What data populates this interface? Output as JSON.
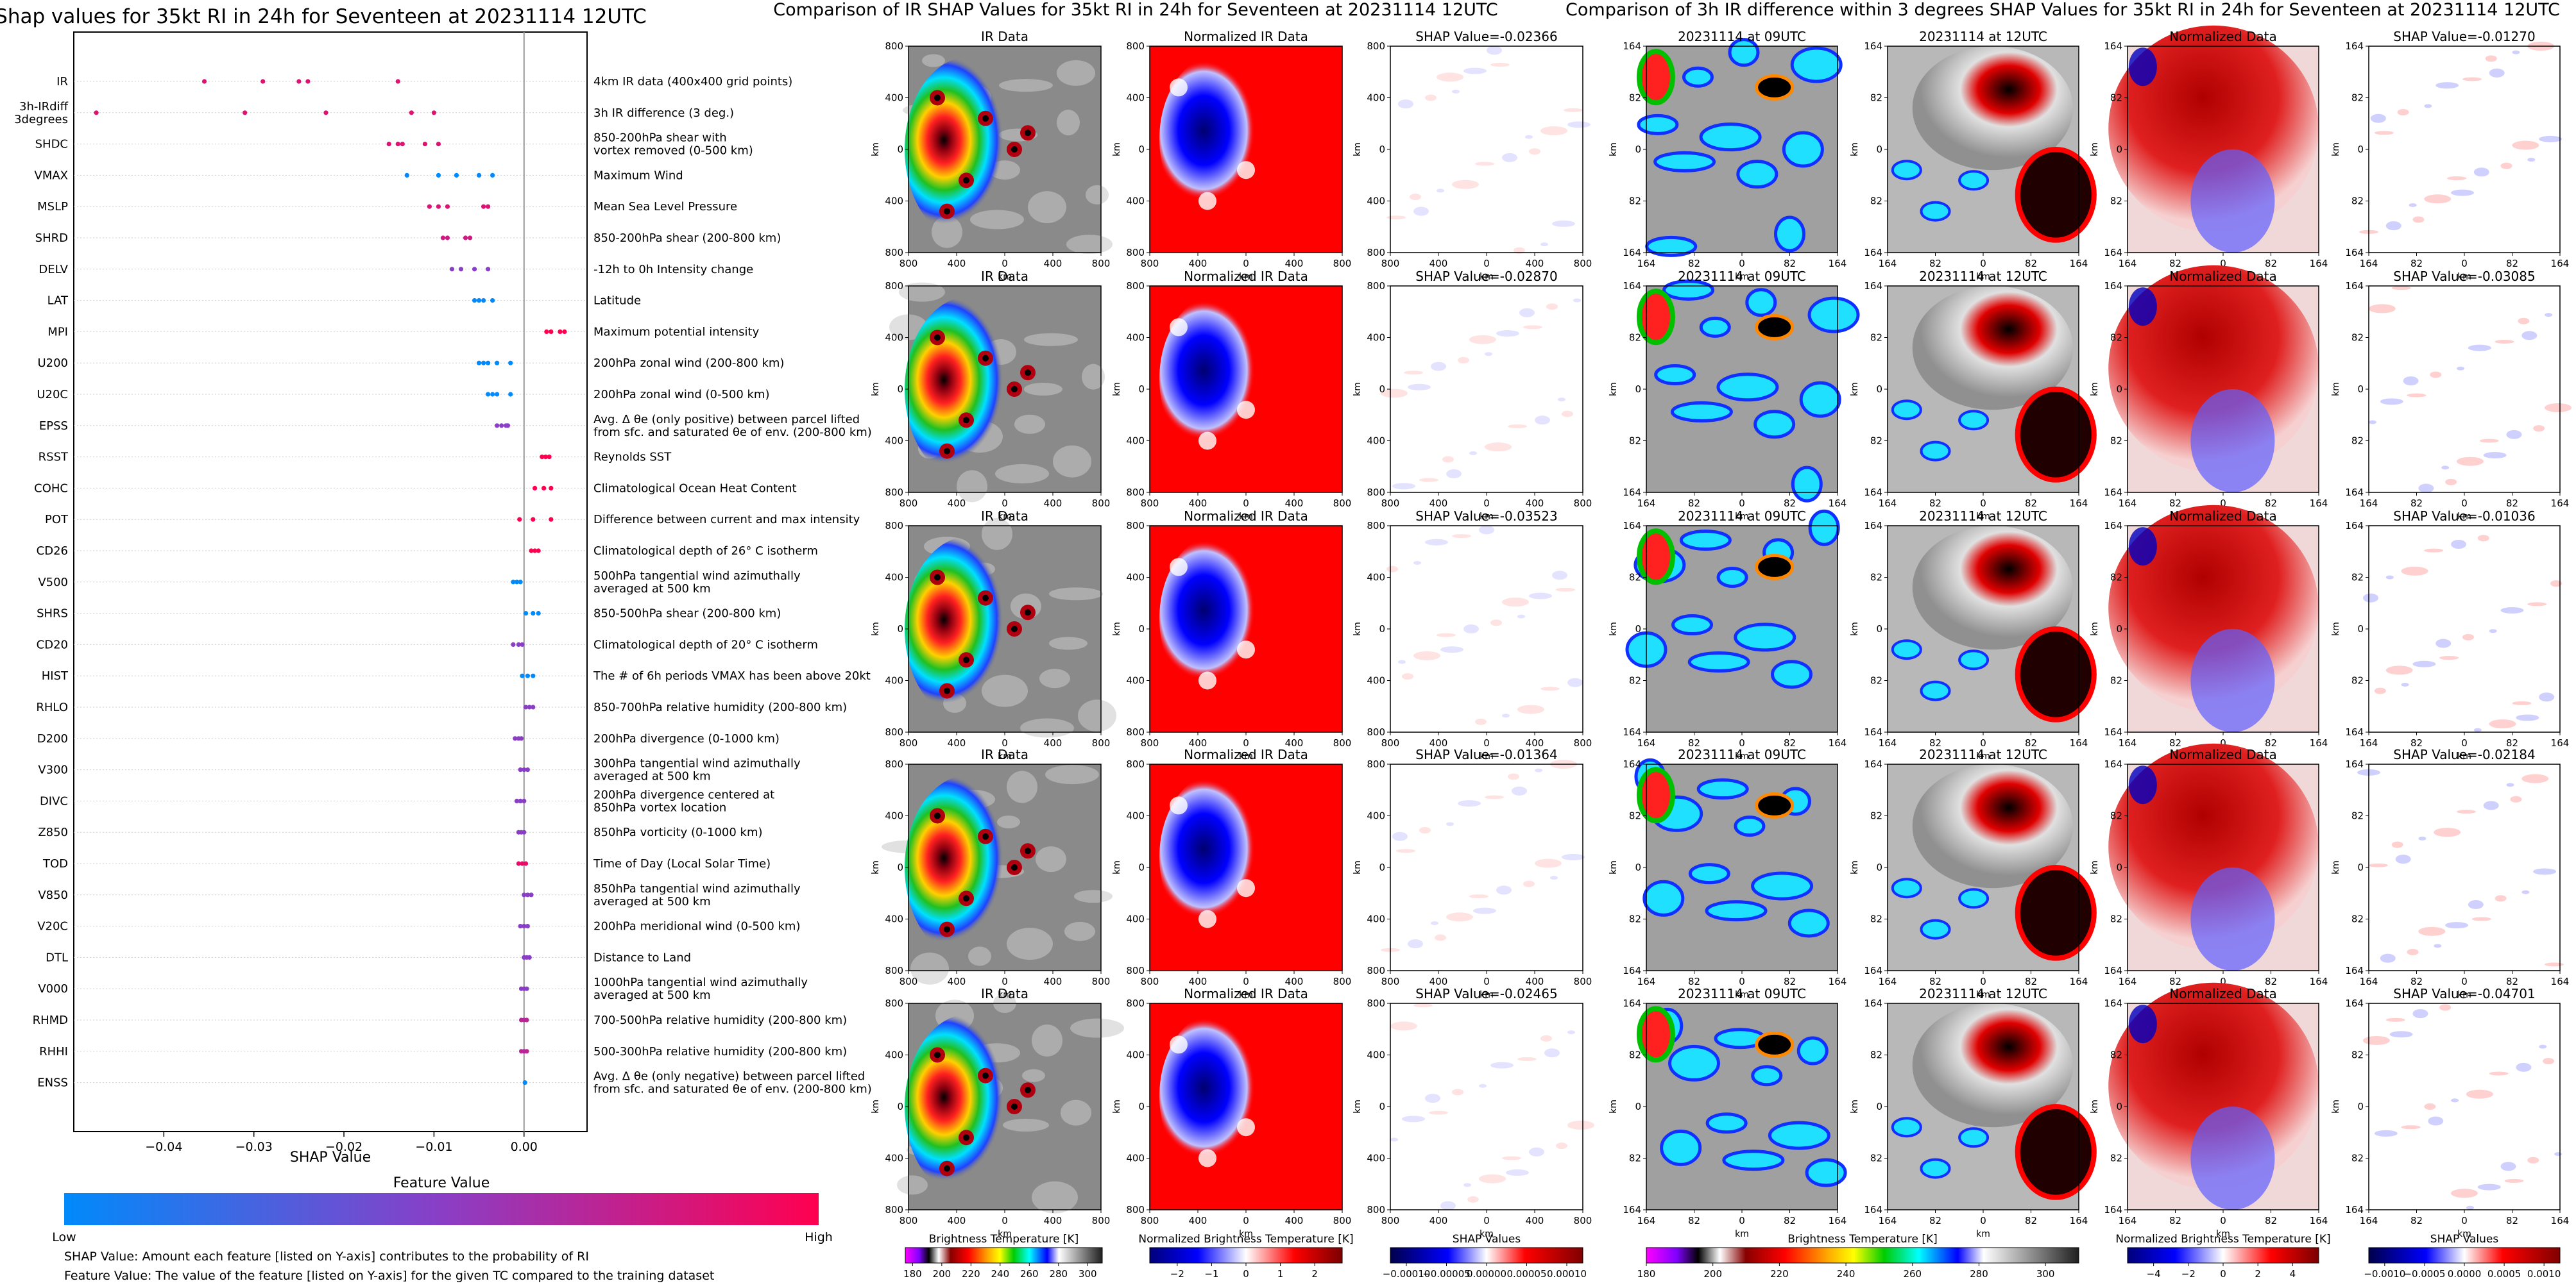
{
  "colors": {
    "feature_low": "#008afb",
    "feature_mid": "#8a3ec6",
    "feature_high": "#ff0050",
    "ir_cold": "#9a002a",
    "ir_warm_gray": "#808080",
    "norm_blue": "#0000ff",
    "norm_red": "#ff0000"
  },
  "chart_data": [
    {
      "type": "scatter",
      "title": "Shap values for 35kt RI in 24h for Seventeen at 20231114 12UTC",
      "xlabel": "SHAP Value",
      "ylabel": "",
      "xlim": [
        -0.05,
        0.007
      ],
      "x_ticks": [
        "−0.04",
        "−0.03",
        "−0.02",
        "−0.01",
        "0.00"
      ],
      "x_tick_values": [
        -0.04,
        -0.03,
        -0.02,
        -0.01,
        0.0
      ],
      "grid": false,
      "legend": "none",
      "colorbar": {
        "title": "Feature Value",
        "low": "Low",
        "high": "High"
      },
      "notes": [
        "SHAP Value: Amount each feature [listed on Y-axis] contributes to the probability of RI",
        "Feature Value: The value of the feature [listed on Y-axis] for the given TC compared to the training dataset"
      ],
      "features": [
        {
          "code": "IR",
          "desc": "4km IR data (400x400 grid points)",
          "values": [
            -0.0355,
            -0.029,
            -0.025,
            -0.024,
            -0.014
          ],
          "level": 0.85
        },
        {
          "code": "3h-IRdiff\n3degrees",
          "desc": "3h IR difference (3 deg.)",
          "values": [
            -0.0475,
            -0.031,
            -0.022,
            -0.0125,
            -0.01
          ],
          "level": 0.85
        },
        {
          "code": "SHDC",
          "desc": "850-200hPa shear with\nvortex removed (0-500 km)",
          "values": [
            -0.015,
            -0.014,
            -0.0135,
            -0.011,
            -0.0095
          ],
          "level": 0.85
        },
        {
          "code": "VMAX",
          "desc": "Maximum Wind",
          "values": [
            -0.013,
            -0.0095,
            -0.0075,
            -0.005,
            -0.0035
          ],
          "level": 0.0
        },
        {
          "code": "MSLP",
          "desc": "Mean Sea Level Pressure",
          "values": [
            -0.0105,
            -0.0095,
            -0.0085,
            -0.0045,
            -0.004
          ],
          "level": 0.85
        },
        {
          "code": "SHRD",
          "desc": "850-200hPa shear (200-800 km)",
          "values": [
            -0.009,
            -0.0085,
            -0.0065,
            -0.006
          ],
          "level": 0.8
        },
        {
          "code": "DELV",
          "desc": "-12h to 0h Intensity change",
          "values": [
            -0.008,
            -0.007,
            -0.0055,
            -0.004
          ],
          "level": 0.5
        },
        {
          "code": "LAT",
          "desc": "Latitude",
          "values": [
            -0.0055,
            -0.005,
            -0.0045,
            -0.0035
          ],
          "level": 0.0
        },
        {
          "code": "MPI",
          "desc": "Maximum potential intensity",
          "values": [
            0.0025,
            0.003,
            0.004,
            0.0045
          ],
          "level": 1.0
        },
        {
          "code": "U200",
          "desc": "200hPa zonal wind (200-800 km)",
          "values": [
            -0.005,
            -0.0045,
            -0.004,
            -0.003,
            -0.0015
          ],
          "level": 0.0
        },
        {
          "code": "U20C",
          "desc": "200hPa zonal wind (0-500 km)",
          "values": [
            -0.004,
            -0.0035,
            -0.003,
            -0.0015
          ],
          "level": 0.0
        },
        {
          "code": "EPSS",
          "desc": "Avg. Δ θe (only positive) between parcel lifted\nfrom sfc. and saturated θe of env. (200-800 km)",
          "values": [
            -0.003,
            -0.0025,
            -0.002,
            -0.0018
          ],
          "level": 0.5
        },
        {
          "code": "RSST",
          "desc": "Reynolds SST",
          "values": [
            0.002,
            0.0024,
            0.0028
          ],
          "level": 1.0
        },
        {
          "code": "COHC",
          "desc": "Climatological Ocean Heat Content",
          "values": [
            0.0012,
            0.0022,
            0.003
          ],
          "level": 1.0
        },
        {
          "code": "POT",
          "desc": "Difference between current and max intensity",
          "values": [
            -0.0005,
            0.001,
            0.003
          ],
          "level": 1.0
        },
        {
          "code": "CD26",
          "desc": "Climatological depth of 26° C isotherm",
          "values": [
            0.0008,
            0.0012,
            0.0016
          ],
          "level": 1.0
        },
        {
          "code": "V500",
          "desc": "500hPa tangential wind azimuthally\naveraged at 500 km",
          "values": [
            -0.0012,
            -0.0008,
            -0.0004
          ],
          "level": 0.0
        },
        {
          "code": "SHRS",
          "desc": "850-500hPa shear (200-800 km)",
          "values": [
            0.0002,
            0.001,
            0.0016
          ],
          "level": 0.0
        },
        {
          "code": "CD20",
          "desc": "Climatological depth of 20° C isotherm",
          "values": [
            -0.0012,
            -0.0006,
            -0.0002
          ],
          "level": 0.5
        },
        {
          "code": "HIST",
          "desc": "The # of 6h periods VMAX has been above 20kt",
          "values": [
            -0.0002,
            0.0004,
            0.001
          ],
          "level": 0.0
        },
        {
          "code": "RHLO",
          "desc": "850-700hPa relative humidity (200-800 km)",
          "values": [
            0.0002,
            0.0006,
            0.001
          ],
          "level": 0.5
        },
        {
          "code": "D200",
          "desc": "200hPa divergence (0-1000 km)",
          "values": [
            -0.001,
            -0.0006,
            -0.0003
          ],
          "level": 0.5
        },
        {
          "code": "V300",
          "desc": "300hPa tangential wind azimuthally\naveraged at 500 km",
          "values": [
            -0.0004,
            0.0,
            0.0004
          ],
          "level": 0.5
        },
        {
          "code": "DIVC",
          "desc": "200hPa divergence centered at\n850hPa vortex location",
          "values": [
            -0.0008,
            -0.0004,
            0.0
          ],
          "level": 0.5
        },
        {
          "code": "Z850",
          "desc": "850hPa vorticity (0-1000 km)",
          "values": [
            -0.0006,
            -0.0003,
            0.0
          ],
          "level": 0.5
        },
        {
          "code": "TOD",
          "desc": "Time of Day (Local Solar Time)",
          "values": [
            -0.0006,
            -0.0002,
            0.0002
          ],
          "level": 0.9
        },
        {
          "code": "V850",
          "desc": "850hPa tangential wind azimuthally\naveraged at 500 km",
          "values": [
            0.0,
            0.0004,
            0.0008
          ],
          "level": 0.5
        },
        {
          "code": "V20C",
          "desc": "200hPa meridional wind (0-500 km)",
          "values": [
            -0.0004,
            0.0,
            0.0004
          ],
          "level": 0.5
        },
        {
          "code": "DTL",
          "desc": "Distance to Land",
          "values": [
            0.0,
            0.0003,
            0.0006
          ],
          "level": 0.5
        },
        {
          "code": "V000",
          "desc": "1000hPa tangential wind azimuthally\naveraged at 500 km",
          "values": [
            -0.0003,
            0.0,
            0.0003
          ],
          "level": 0.5
        },
        {
          "code": "RHMD",
          "desc": "700-500hPa relative humidity (200-800 km)",
          "values": [
            -0.0003,
            0.0,
            0.0003
          ],
          "level": 0.7
        },
        {
          "code": "RHHI",
          "desc": "500-300hPa relative humidity (200-800 km)",
          "values": [
            -0.0003,
            0.0,
            0.0003
          ],
          "level": 0.7
        },
        {
          "code": "ENSS",
          "desc": "Avg. Δ θe (only negative) between parcel lifted\nfrom sfc. and saturated θe of env. (200-800 km)",
          "values": [
            0.0001
          ],
          "level": 0.0
        }
      ]
    },
    {
      "type": "heatmap",
      "title": "Comparison of IR SHAP Values for 35kt RI in 24h for Seventeen at 20231114 12UTC",
      "xlabel": "km",
      "ylabel": "km",
      "x_ticks": [
        "800",
        "400",
        "0",
        "400",
        "800"
      ],
      "y_ticks": [
        "800",
        "400",
        "0",
        "400",
        "800"
      ],
      "column_titles": [
        "IR Data",
        "Normalized IR Data"
      ],
      "shap_titles": [
        "SHAP Value=-0.02366",
        "SHAP Value=-0.02870",
        "SHAP Value=-0.03523",
        "SHAP Value=-0.01364",
        "SHAP Value=-0.02465"
      ],
      "colorbars": [
        {
          "label": "Brightness Temperature [K]",
          "ticks": [
            "180",
            "200",
            "220",
            "240",
            "260",
            "280",
            "300"
          ],
          "range": [
            175,
            310
          ]
        },
        {
          "label": "Normalized Brightness Temperature [K]",
          "ticks": [
            "−2",
            "−1",
            "0",
            "1",
            "2"
          ],
          "range": [
            -2.8,
            2.8
          ]
        },
        {
          "label": "SHAP Values",
          "ticks": [
            "−0.00010",
            "−0.00005",
            "0.00000",
            "0.00005",
            "0.00010"
          ],
          "range": [
            -0.00012,
            0.00012
          ]
        }
      ]
    },
    {
      "type": "heatmap",
      "title": "Comparison of 3h IR difference within 3 degrees SHAP Values for 35kt RI in 24h for Seventeen at 20231114 12UTC",
      "xlabel": "km",
      "ylabel": "km",
      "x_ticks": [
        "164",
        "82",
        "0",
        "82",
        "164"
      ],
      "y_ticks": [
        "164",
        "82",
        "0",
        "82",
        "164"
      ],
      "column_titles": [
        "20231114 at 09UTC",
        "20231114 at 12UTC",
        "Normalized Data"
      ],
      "shap_titles": [
        "SHAP Value=-0.01270",
        "SHAP Value=-0.03085",
        "SHAP Value=-0.01036",
        "SHAP Value=-0.02184",
        "SHAP Value=-0.04701"
      ],
      "colorbars": [
        {
          "label": "Brightness Temperature [K]",
          "ticks": [
            "180",
            "200",
            "220",
            "240",
            "260",
            "280",
            "300"
          ],
          "range": [
            180,
            310
          ]
        },
        {
          "label": "Normalized Brightness Temperature [K]",
          "ticks": [
            "−4",
            "−2",
            "0",
            "2",
            "4"
          ],
          "range": [
            -5.5,
            5.5
          ]
        },
        {
          "label": "SHAP Values",
          "ticks": [
            "−0.0010",
            "−0.0005",
            "0.0000",
            "0.0005",
            "0.0010"
          ],
          "range": [
            -0.0012,
            0.0012
          ]
        }
      ]
    }
  ]
}
